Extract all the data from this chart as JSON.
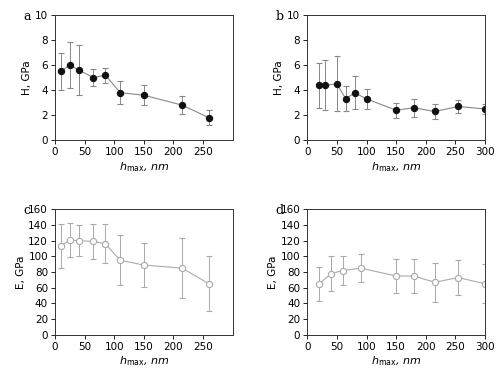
{
  "panel_a": {
    "x": [
      10,
      25,
      40,
      65,
      85,
      110,
      150,
      215,
      260
    ],
    "y": [
      5.5,
      6.0,
      5.6,
      5.0,
      5.2,
      3.8,
      3.6,
      2.8,
      1.8
    ],
    "yerr": [
      1.5,
      1.8,
      2.0,
      0.7,
      0.6,
      0.9,
      0.8,
      0.7,
      0.6
    ],
    "label": "a",
    "ylabel": "H, GPa",
    "xlabel": "$h_{\\mathrm{max}}$, nm",
    "ylim": [
      0,
      10
    ],
    "yticks": [
      0,
      2,
      4,
      6,
      8,
      10
    ],
    "xlim": [
      0,
      300
    ],
    "xticks": [
      0,
      50,
      100,
      150,
      200,
      250
    ]
  },
  "panel_b": {
    "x": [
      20,
      30,
      50,
      65,
      80,
      100,
      150,
      180,
      215,
      255,
      300
    ],
    "y": [
      4.4,
      4.4,
      4.5,
      3.3,
      3.8,
      3.3,
      2.4,
      2.6,
      2.3,
      2.7,
      2.5
    ],
    "yerr": [
      1.8,
      2.0,
      2.2,
      1.0,
      1.3,
      0.8,
      0.6,
      0.7,
      0.6,
      0.5,
      0.4
    ],
    "label": "b",
    "ylabel": "H, GPa",
    "xlabel": "$h_{\\mathrm{max}}$, nm",
    "ylim": [
      0,
      10
    ],
    "yticks": [
      0,
      2,
      4,
      6,
      8,
      10
    ],
    "xlim": [
      0,
      300
    ],
    "xticks": [
      0,
      50,
      100,
      150,
      200,
      250,
      300
    ]
  },
  "panel_c": {
    "x": [
      10,
      25,
      40,
      65,
      85,
      110,
      150,
      215,
      260
    ],
    "y": [
      113,
      121,
      120,
      119,
      116,
      95,
      89,
      85,
      65
    ],
    "yerr": [
      28,
      22,
      20,
      22,
      25,
      32,
      28,
      38,
      35
    ],
    "label": "c",
    "ylabel": "E, GPa",
    "xlabel": "$h_{\\mathrm{max}}$, nm",
    "ylim": [
      0,
      160
    ],
    "yticks": [
      0,
      20,
      40,
      60,
      80,
      100,
      120,
      140,
      160
    ],
    "xlim": [
      0,
      300
    ],
    "xticks": [
      0,
      50,
      100,
      150,
      200,
      250
    ]
  },
  "panel_d": {
    "x": [
      20,
      40,
      60,
      90,
      150,
      180,
      215,
      255,
      300
    ],
    "y": [
      65,
      78,
      82,
      85,
      75,
      75,
      67,
      73,
      65
    ],
    "yerr": [
      22,
      22,
      18,
      18,
      22,
      22,
      25,
      22,
      25
    ],
    "label": "d",
    "ylabel": "E, GPa",
    "xlabel": "$h_{\\mathrm{max}}$, nm",
    "ylim": [
      0,
      160
    ],
    "yticks": [
      0,
      20,
      40,
      60,
      80,
      100,
      120,
      140,
      160
    ],
    "xlim": [
      0,
      300
    ],
    "xticks": [
      0,
      50,
      100,
      150,
      200,
      250,
      300
    ]
  },
  "dark_marker_color": "#111111",
  "dark_line_color": "#888888",
  "light_line_color": "#aaaaaa",
  "light_ecolor": "#999999",
  "marker_size": 4.5,
  "line_width": 0.8,
  "cap_size": 2.5,
  "font_size": 7.5,
  "label_font_size": 9,
  "xlabel_font_size": 8
}
